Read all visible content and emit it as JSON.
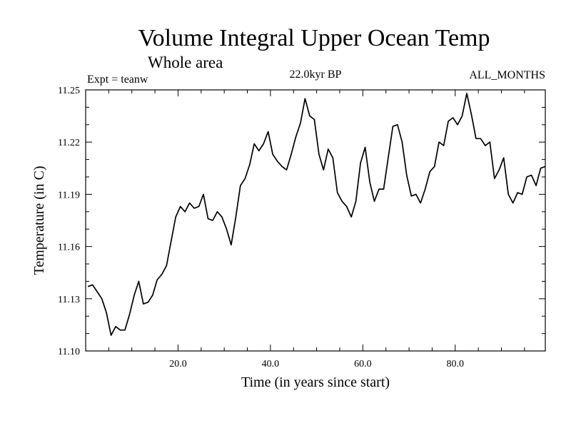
{
  "chart_data": {
    "type": "line",
    "title": "Volume Integral Upper Ocean Temp",
    "subtitle": "Whole area",
    "left_note": "Expt = teanw",
    "center_note": "22.0kyr BP",
    "right_note": "ALL_MONTHS",
    "xlabel": "Time (in years since start)",
    "ylabel": "Temperature (in C)",
    "xlim": [
      0,
      99.5
    ],
    "ylim": [
      11.1,
      11.25
    ],
    "xticks": [
      20,
      40,
      60,
      80
    ],
    "xtick_labels": [
      "20.0",
      "40.0",
      "60.0",
      "80.0"
    ],
    "yticks": [
      11.1,
      11.13,
      11.16,
      11.19,
      11.22,
      11.25
    ],
    "ytick_labels": [
      "11.10",
      "11.13",
      "11.16",
      "11.19",
      "11.22",
      "11.25"
    ],
    "series": [
      {
        "name": "Volume Integral Upper Ocean Temp",
        "x": [
          0.5,
          1.5,
          2.5,
          3.5,
          4.5,
          5.5,
          6.5,
          7.5,
          8.5,
          9.5,
          10.5,
          11.5,
          12.5,
          13.5,
          14.5,
          15.5,
          16.5,
          17.5,
          18.5,
          19.5,
          20.5,
          21.5,
          22.5,
          23.5,
          24.5,
          25.5,
          26.5,
          27.5,
          28.5,
          29.5,
          30.5,
          31.5,
          32.5,
          33.5,
          34.5,
          35.5,
          36.5,
          37.5,
          38.5,
          39.5,
          40.5,
          41.5,
          42.5,
          43.5,
          44.5,
          45.5,
          46.5,
          47.5,
          48.5,
          49.5,
          50.5,
          51.5,
          52.5,
          53.5,
          54.5,
          55.5,
          56.5,
          57.5,
          58.5,
          59.5,
          60.5,
          61.5,
          62.5,
          63.5,
          64.5,
          65.5,
          66.5,
          67.5,
          68.5,
          69.5,
          70.5,
          71.5,
          72.5,
          73.5,
          74.5,
          75.5,
          76.5,
          77.5,
          78.5,
          79.5,
          80.5,
          81.5,
          82.5,
          83.5,
          84.5,
          85.5,
          86.5,
          87.5,
          88.5,
          89.5,
          90.5,
          91.5,
          92.5,
          93.5,
          94.5,
          95.5,
          96.5,
          97.5,
          98.5,
          99.5
        ],
        "values": [
          11.137,
          11.138,
          11.134,
          11.13,
          11.122,
          11.109,
          11.114,
          11.112,
          11.112,
          11.121,
          11.132,
          11.14,
          11.127,
          11.128,
          11.132,
          11.141,
          11.144,
          11.149,
          11.163,
          11.177,
          11.183,
          11.18,
          11.185,
          11.182,
          11.183,
          11.19,
          11.176,
          11.175,
          11.18,
          11.177,
          11.17,
          11.161,
          11.177,
          11.195,
          11.199,
          11.207,
          11.219,
          11.215,
          11.219,
          11.226,
          11.213,
          11.209,
          11.206,
          11.204,
          11.213,
          11.223,
          11.231,
          11.245,
          11.235,
          11.233,
          11.213,
          11.204,
          11.216,
          11.211,
          11.191,
          11.186,
          11.183,
          11.177,
          11.186,
          11.208,
          11.217,
          11.197,
          11.186,
          11.193,
          11.193,
          11.211,
          11.229,
          11.23,
          11.22,
          11.201,
          11.189,
          11.19,
          11.185,
          11.193,
          11.203,
          11.206,
          11.22,
          11.218,
          11.232,
          11.234,
          11.23,
          11.235,
          11.248,
          11.236,
          11.222,
          11.222,
          11.218,
          11.22,
          11.199,
          11.204,
          11.211,
          11.19,
          11.185,
          11.191,
          11.19,
          11.2,
          11.201,
          11.195,
          11.205,
          11.206
        ]
      }
    ]
  }
}
